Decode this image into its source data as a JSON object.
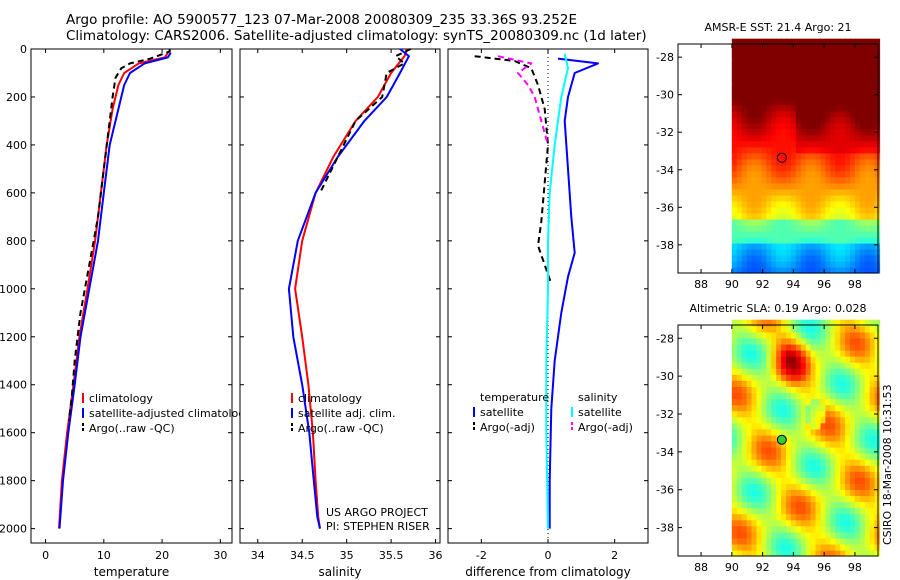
{
  "header": {
    "line1": "Argo profile: AO 5900577_123 07-Mar-2008 20080309_235 33.36S 93.252E",
    "line2": "Climatology: CARS2006. Satellite-adjusted climatology: synTS_20080309.nc (1d later)"
  },
  "credits": {
    "project": "US ARGO PROJECT",
    "pi": "PI: STEPHEN RISER"
  },
  "timestamp": "CSIRO 18-Mar-2008 10:31:53",
  "colors": {
    "climatology": "#ff0000",
    "satellite": "#0000ff",
    "argo": "#000000",
    "satellite_diff": "#00ffff",
    "argo_sal_diff": "#ff00ff"
  },
  "chart_data": [
    {
      "type": "line",
      "id": "temperature",
      "xlabel": "temperature",
      "xlim": [
        -2.5,
        32
      ],
      "ylim": [
        2060,
        0
      ],
      "xticks": [
        0,
        10,
        20,
        30
      ],
      "yticks": [
        0,
        200,
        400,
        600,
        800,
        1000,
        1200,
        1400,
        1600,
        1800,
        2000
      ],
      "legend": [
        "climatology",
        "satellite-adjusted climatology",
        "Argo(..raw -QC)"
      ],
      "series": [
        {
          "name": "climatology",
          "color": "#ff0000",
          "dash": "",
          "x": [
            21.0,
            20.5,
            16.0,
            13.5,
            12.5,
            11.5,
            10.5,
            9.5,
            8.5,
            7.2,
            5.8,
            4.8,
            3.7,
            2.8,
            2.3
          ],
          "y": [
            15,
            35,
            60,
            100,
            150,
            250,
            400,
            600,
            800,
            1000,
            1200,
            1400,
            1600,
            1800,
            2000
          ]
        },
        {
          "name": "satellite-adjusted climatology",
          "color": "#0000ff",
          "dash": "",
          "x": [
            21.5,
            21.0,
            17.0,
            14.5,
            13.5,
            12.5,
            11.0,
            10.0,
            9.0,
            7.5,
            6.0,
            5.0,
            3.9,
            3.0,
            2.4
          ],
          "y": [
            15,
            35,
            60,
            100,
            150,
            250,
            400,
            600,
            800,
            1000,
            1200,
            1400,
            1600,
            1800,
            2000
          ]
        },
        {
          "name": "Argo(..raw -QC)",
          "color": "#000000",
          "dash": "6,4",
          "x": [
            21.3,
            21.3,
            18.0,
            14.5,
            13.0,
            12.0,
            11.5,
            11.0,
            10.0,
            9.0,
            7.5,
            6.0,
            5.0,
            4.5,
            4.0
          ],
          "y": [
            0,
            10,
            40,
            60,
            80,
            120,
            200,
            300,
            500,
            700,
            900,
            1100,
            1300,
            1450,
            1550
          ]
        }
      ]
    },
    {
      "type": "line",
      "id": "salinity",
      "xlabel": "salinity",
      "xlim": [
        33.8,
        36.05
      ],
      "ylim": [
        2060,
        0
      ],
      "xticks": [
        34,
        34.5,
        35,
        35.5,
        36
      ],
      "legend": [
        "climatology",
        "satellite adj. clim.",
        "Argo(..raw -QC)"
      ],
      "series": [
        {
          "name": "climatology",
          "color": "#ff0000",
          "dash": "",
          "x": [
            35.68,
            35.65,
            35.5,
            35.35,
            35.1,
            34.85,
            34.65,
            34.5,
            34.42,
            34.5,
            34.57,
            34.62,
            34.65,
            34.68,
            34.7
          ],
          "y": [
            0,
            30,
            100,
            200,
            300,
            450,
            600,
            800,
            1000,
            1200,
            1400,
            1600,
            1800,
            1950,
            2000
          ]
        },
        {
          "name": "satellite adj. clim.",
          "color": "#0000ff",
          "dash": "",
          "x": [
            35.6,
            35.7,
            35.6,
            35.45,
            35.2,
            34.9,
            34.65,
            34.45,
            34.35,
            34.4,
            34.5,
            34.58,
            34.63,
            34.67,
            34.7
          ],
          "y": [
            0,
            30,
            100,
            200,
            300,
            450,
            600,
            800,
            1000,
            1200,
            1400,
            1600,
            1800,
            1950,
            2000
          ]
        },
        {
          "name": "Argo(..raw -QC)",
          "color": "#000000",
          "dash": "6,4",
          "x": [
            35.72,
            35.55,
            35.65,
            35.45,
            35.4,
            35.1,
            34.9,
            34.7
          ],
          "y": [
            0,
            30,
            60,
            100,
            200,
            300,
            450,
            600
          ]
        }
      ]
    },
    {
      "type": "line",
      "id": "difference",
      "xlabel": "difference from climatology",
      "xlim": [
        -3,
        3
      ],
      "ylim": [
        2060,
        0
      ],
      "xticks": [
        -2,
        0,
        2
      ],
      "legend_groups": [
        {
          "title": "temperature",
          "entries": [
            "satellite",
            "Argo(-adj)"
          ]
        },
        {
          "title": "salinity",
          "entries": [
            "satellite",
            "Argo(-adj)"
          ]
        }
      ],
      "series": [
        {
          "name": "temperature satellite",
          "color": "#0000ff",
          "dash": "",
          "x": [
            0.3,
            1.5,
            0.8,
            0.6,
            0.5,
            0.6,
            0.7,
            0.8,
            0.6,
            0.4,
            0.2,
            0.1,
            0.05,
            0.05
          ],
          "y": [
            40,
            60,
            100,
            200,
            300,
            500,
            700,
            850,
            950,
            1100,
            1300,
            1500,
            1800,
            2000
          ]
        },
        {
          "name": "temperature Argo(-adj)",
          "color": "#000000",
          "dash": "6,4",
          "x": [
            -2.2,
            -1.0,
            -0.5,
            -0.3,
            -0.1,
            0.0,
            -0.2,
            -0.3,
            -0.1,
            0.1
          ],
          "y": [
            30,
            50,
            80,
            150,
            250,
            400,
            720,
            820,
            900,
            980
          ]
        },
        {
          "name": "salinity satellite",
          "color": "#00ffff",
          "dash": "",
          "x": [
            0.5,
            0.6,
            0.4,
            0.2,
            0.05,
            0.0,
            0.0,
            -0.05,
            -0.05,
            0.0
          ],
          "y": [
            20,
            80,
            200,
            400,
            600,
            800,
            1000,
            1300,
            1600,
            2000
          ]
        },
        {
          "name": "salinity Argo(-adj)",
          "color": "#ff00ff",
          "dash": "6,4",
          "x": [
            -1.5,
            -0.5,
            -0.9,
            -0.6,
            -0.4,
            -0.2,
            0.0
          ],
          "y": [
            30,
            60,
            100,
            150,
            200,
            300,
            400
          ]
        }
      ]
    },
    {
      "type": "heatmap",
      "id": "sst",
      "title": "AMSR-E SST: 21.4 Argo: 21",
      "xlim": [
        86.5,
        99.5
      ],
      "ylim": [
        -39.5,
        -27.3
      ],
      "xticks": [
        88,
        90,
        92,
        94,
        96,
        98
      ],
      "yticks": [
        -28,
        -30,
        -32,
        -34,
        -36,
        -38
      ],
      "data_xlim": [
        90,
        99.5
      ],
      "argo_position": [
        93.25,
        -33.36
      ]
    },
    {
      "type": "heatmap",
      "id": "sla",
      "title": "Altimetric SLA: 0.19 Argo: 0.028",
      "xlim": [
        86.5,
        99.5
      ],
      "ylim": [
        -39.5,
        -27.3
      ],
      "xticks": [
        88,
        90,
        92,
        94,
        96,
        98
      ],
      "yticks": [
        -28,
        -30,
        -32,
        -34,
        -36,
        -38
      ],
      "data_xlim": [
        90,
        99.5
      ],
      "argo_position": [
        93.25,
        -33.36
      ]
    }
  ]
}
